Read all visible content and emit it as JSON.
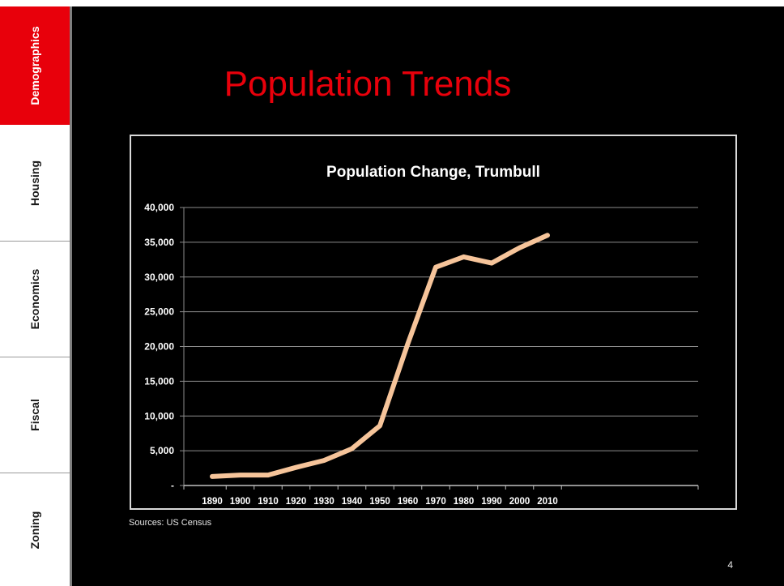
{
  "sidebar": {
    "tabs": [
      {
        "label": "Demographics",
        "active": true
      },
      {
        "label": "Housing",
        "active": false
      },
      {
        "label": "Economics",
        "active": false
      },
      {
        "label": "Fiscal",
        "active": false
      },
      {
        "label": "Zoning",
        "active": false
      }
    ]
  },
  "slide": {
    "title": "Population Trends",
    "sources": "Sources:  US Census",
    "page_number": "4"
  },
  "colors": {
    "accent": "#e8000b",
    "background": "#000000",
    "line": "#f6c49a"
  },
  "chart_data": {
    "type": "line",
    "title": "Population Change, Trumbull",
    "xlabel": "",
    "ylabel": "",
    "grid": true,
    "legend": "none",
    "ylim": [
      0,
      40000
    ],
    "y_ticks": [
      0,
      5000,
      10000,
      15000,
      20000,
      25000,
      30000,
      35000,
      40000
    ],
    "y_tick_labels": [
      "-",
      "5,000",
      "10,000",
      "15,000",
      "20,000",
      "25,000",
      "30,000",
      "35,000",
      "40,000"
    ],
    "categories": [
      "1890",
      "1900",
      "1910",
      "1920",
      "1930",
      "1940",
      "1950",
      "1960",
      "1970",
      "1980",
      "1990",
      "2000",
      "2010"
    ],
    "series": [
      {
        "values": [
          1300,
          1500,
          1500,
          2600,
          3600,
          5300,
          8600,
          20400,
          31400,
          32900,
          32000,
          34200,
          36000
        ]
      }
    ]
  }
}
